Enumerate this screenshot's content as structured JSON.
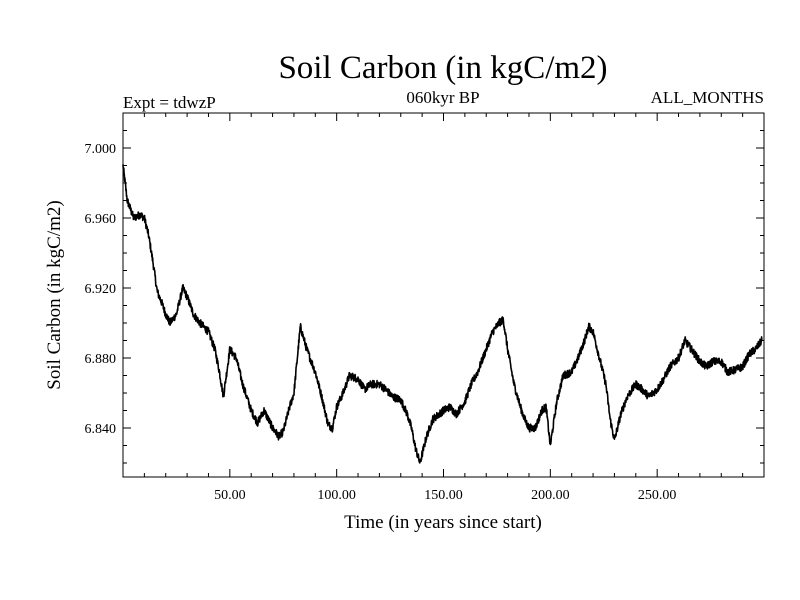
{
  "chart_data": {
    "type": "line",
    "title": "Soil Carbon (in kgC/m2)",
    "subtitle": "060kyr BP",
    "experiment": "Expt = tdwzP",
    "period": "ALL_MONTHS",
    "xlabel": "Time (in years since start)",
    "ylabel": "Soil Carbon (in kgC/m2)",
    "xlim": [
      0,
      300
    ],
    "ylim": [
      6.812,
      7.02
    ],
    "x_ticks": [
      50,
      100,
      150,
      200,
      250
    ],
    "x_tick_labels": [
      "50.00",
      "100.00",
      "150.00",
      "200.00",
      "250.00"
    ],
    "y_ticks": [
      6.84,
      6.88,
      6.92,
      6.96,
      7.0
    ],
    "y_tick_labels": [
      "6.840",
      "6.880",
      "6.920",
      "6.960",
      "7.000"
    ],
    "grid": false,
    "series": [
      {
        "color": "#000000",
        "noise": 0.0045,
        "x": [
          0,
          2,
          5,
          8,
          10,
          12,
          14,
          16,
          18,
          20,
          22,
          25,
          28,
          30,
          33,
          36,
          40,
          43,
          45,
          47,
          50,
          53,
          56,
          60,
          63,
          66,
          70,
          73,
          75,
          78,
          80,
          83,
          86,
          90,
          93,
          96,
          98,
          100,
          103,
          106,
          110,
          113,
          116,
          120,
          123,
          126,
          130,
          133,
          135,
          137,
          139,
          142,
          145,
          148,
          150,
          153,
          156,
          160,
          163,
          166,
          170,
          173,
          176,
          178,
          180,
          183,
          186,
          188,
          190,
          193,
          196,
          198,
          200,
          203,
          206,
          210,
          213,
          216,
          218,
          220,
          223,
          226,
          228,
          230,
          233,
          236,
          240,
          243,
          246,
          250,
          253,
          256,
          260,
          263,
          266,
          270,
          273,
          276,
          280,
          283,
          286,
          290,
          293,
          296,
          299
        ],
        "y": [
          6.99,
          6.97,
          6.96,
          6.962,
          6.96,
          6.95,
          6.935,
          6.918,
          6.912,
          6.905,
          6.9,
          6.905,
          6.92,
          6.915,
          6.905,
          6.9,
          6.895,
          6.885,
          6.873,
          6.858,
          6.885,
          6.88,
          6.865,
          6.85,
          6.843,
          6.85,
          6.84,
          6.835,
          6.838,
          6.852,
          6.86,
          6.898,
          6.885,
          6.872,
          6.858,
          6.842,
          6.84,
          6.852,
          6.86,
          6.87,
          6.868,
          6.862,
          6.865,
          6.865,
          6.862,
          6.858,
          6.856,
          6.848,
          6.84,
          6.828,
          6.82,
          6.835,
          6.845,
          6.848,
          6.85,
          6.852,
          6.848,
          6.855,
          6.865,
          6.872,
          6.885,
          6.895,
          6.9,
          6.902,
          6.885,
          6.865,
          6.852,
          6.845,
          6.84,
          6.84,
          6.85,
          6.852,
          6.83,
          6.855,
          6.87,
          6.872,
          6.88,
          6.89,
          6.898,
          6.895,
          6.88,
          6.865,
          6.845,
          6.833,
          6.848,
          6.858,
          6.865,
          6.862,
          6.858,
          6.862,
          6.868,
          6.875,
          6.88,
          6.89,
          6.885,
          6.878,
          6.875,
          6.878,
          6.878,
          6.872,
          6.873,
          6.875,
          6.882,
          6.885,
          6.89
        ]
      }
    ]
  }
}
